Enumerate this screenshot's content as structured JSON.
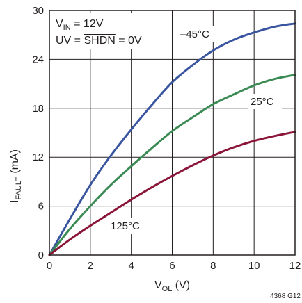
{
  "chart_data": {
    "type": "line",
    "xlabel": "V_OL (V)",
    "xlabel_main": "V",
    "xlabel_sub": "OL",
    "xlabel_unit": " (V)",
    "ylabel": "I_FAULT (mA)",
    "ylabel_main": "I",
    "ylabel_sub": "FAULT",
    "ylabel_unit": " (mA)",
    "xlim": [
      0,
      12
    ],
    "ylim": [
      0,
      30
    ],
    "x_ticks": [
      "0",
      "2",
      "4",
      "6",
      "8",
      "10",
      "12"
    ],
    "y_ticks": [
      "0",
      "6",
      "12",
      "18",
      "24",
      "30"
    ],
    "grid": true,
    "annotation_lines": [
      {
        "main": "V",
        "sub": "IN",
        "rest": " = 12V"
      },
      {
        "pre": "UV = ",
        "overline": "SHDN",
        "post": " = 0V"
      }
    ],
    "series": [
      {
        "name": "–45°C",
        "color": "#3a55a0",
        "x": [
          0,
          1,
          2,
          3,
          4,
          5,
          6,
          7,
          8,
          9,
          10,
          11,
          12
        ],
        "y": [
          0,
          4.4,
          8.6,
          12.2,
          15.4,
          18.4,
          21.2,
          23.3,
          25.1,
          26.4,
          27.3,
          28.0,
          28.4
        ]
      },
      {
        "name": "25°C",
        "color": "#3a8a54",
        "x": [
          0,
          1,
          2,
          3,
          4,
          5,
          6,
          7,
          8,
          9,
          10,
          11,
          12
        ],
        "y": [
          0,
          3.2,
          6.0,
          8.6,
          10.9,
          13.1,
          15.2,
          16.9,
          18.5,
          19.7,
          20.8,
          21.6,
          22.1
        ]
      },
      {
        "name": "125°C",
        "color": "#8b1538",
        "x": [
          0,
          1,
          2,
          3,
          4,
          5,
          6,
          7,
          8,
          9,
          10,
          11,
          12
        ],
        "y": [
          0,
          1.9,
          3.6,
          5.2,
          6.8,
          8.3,
          9.7,
          11.0,
          12.2,
          13.2,
          14.0,
          14.6,
          15.1
        ]
      }
    ],
    "figure_id": "4368 G12"
  }
}
